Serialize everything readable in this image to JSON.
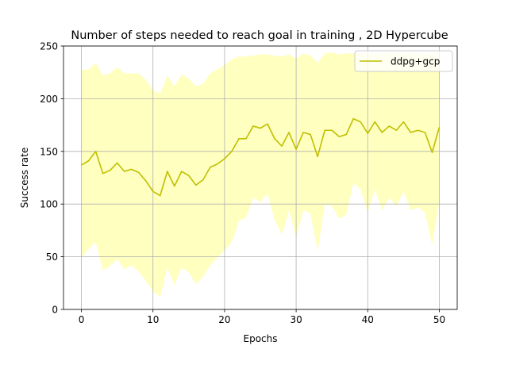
{
  "chart_data": {
    "type": "line",
    "title": "Number of steps needed to reach goal in training , 2D Hypercube",
    "xlabel": "Epochs",
    "ylabel": "Success rate",
    "xlim": [
      -2.5,
      52.5
    ],
    "ylim": [
      0,
      250
    ],
    "xticks": [
      0,
      10,
      20,
      30,
      40,
      50
    ],
    "yticks": [
      0,
      50,
      100,
      150,
      200,
      250
    ],
    "grid": true,
    "legend_position": "upper-right",
    "series": [
      {
        "name": "ddpg+gcp",
        "color": "#bfbf00",
        "band_color": "#ffffbf",
        "x": [
          0,
          1,
          2,
          3,
          4,
          5,
          6,
          7,
          8,
          9,
          10,
          11,
          12,
          13,
          14,
          15,
          16,
          17,
          18,
          19,
          20,
          21,
          22,
          23,
          24,
          25,
          26,
          27,
          28,
          29,
          30,
          31,
          32,
          33,
          34,
          35,
          36,
          37,
          38,
          39,
          40,
          41,
          42,
          43,
          44,
          45,
          46,
          47,
          48,
          49,
          50
        ],
        "y": [
          137,
          141,
          150,
          129,
          132,
          139,
          131,
          133,
          130,
          122,
          112,
          108,
          131,
          117,
          131,
          127,
          118,
          123,
          135,
          138,
          143,
          150,
          162,
          162,
          174,
          172,
          176,
          162,
          155,
          168,
          152,
          168,
          166,
          145,
          170,
          170,
          164,
          166,
          181,
          178,
          167,
          178,
          168,
          174,
          170,
          178,
          168,
          170,
          168,
          149,
          173
        ],
        "y_upper": [
          227,
          228,
          234,
          222,
          224,
          230,
          224,
          224,
          224,
          218,
          208,
          205,
          222,
          212,
          223,
          219,
          212,
          214,
          224,
          228,
          232,
          237,
          240,
          240,
          241,
          242,
          242,
          241,
          240,
          242,
          238,
          243,
          241,
          234,
          243,
          244,
          242,
          243,
          243,
          243,
          243,
          243,
          243,
          243,
          243,
          244,
          243,
          243,
          243,
          241,
          243
        ],
        "y_lower": [
          49,
          57,
          64,
          37,
          41,
          48,
          38,
          42,
          36,
          27,
          17,
          12,
          40,
          23,
          40,
          35,
          24,
          31,
          42,
          49,
          56,
          64,
          84,
          87,
          106,
          102,
          110,
          85,
          71,
          94,
          68,
          94,
          91,
          55,
          100,
          98,
          86,
          90,
          120,
          114,
          92,
          114,
          94,
          106,
          98,
          112,
          94,
          97,
          92,
          61,
          103
        ]
      }
    ]
  }
}
